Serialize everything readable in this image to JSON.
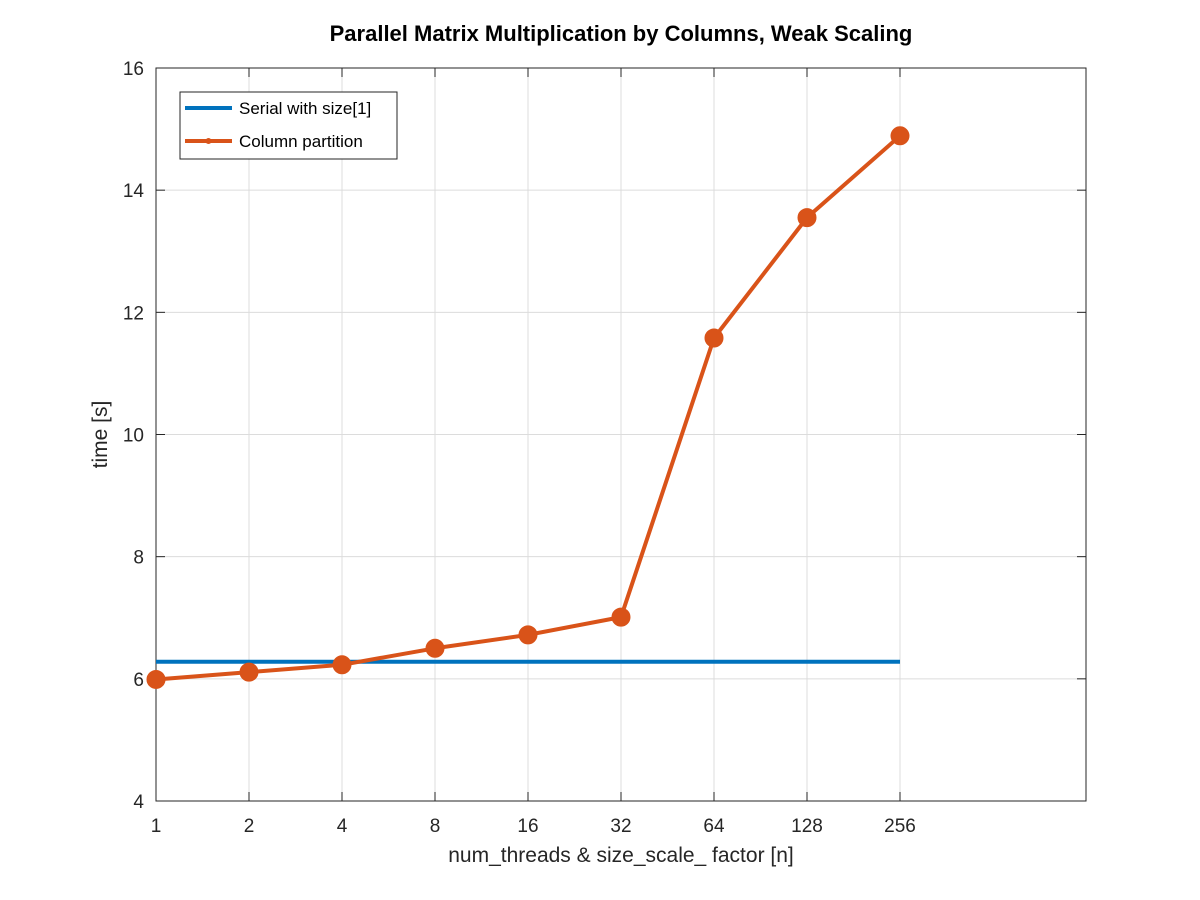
{
  "chart_data": {
    "type": "line",
    "title": "Parallel Matrix Multiplication by Columns, Weak Scaling",
    "xlabel": "num_threads & size_scale_ factor [n]",
    "ylabel": "time [s]",
    "x_scale": "log2",
    "x": [
      1,
      2,
      4,
      8,
      16,
      32,
      64,
      128,
      256
    ],
    "x_tick_labels": [
      "1",
      "2",
      "4",
      "8",
      "16",
      "32",
      "64",
      "128",
      "256"
    ],
    "xlim": [
      1,
      1024
    ],
    "ylim": [
      4,
      16
    ],
    "y_ticks": [
      4,
      6,
      8,
      10,
      12,
      14,
      16
    ],
    "grid": true,
    "legend_position": "top-left",
    "series": [
      {
        "name": "Serial with size[1]",
        "color": "#0072BD",
        "marker": "none",
        "values": [
          6.28,
          6.28,
          6.28,
          6.28,
          6.28,
          6.28,
          6.28,
          6.28,
          6.28
        ]
      },
      {
        "name": "Column partition",
        "color": "#D95319",
        "marker": "circle",
        "values": [
          5.99,
          6.11,
          6.23,
          6.5,
          6.72,
          7.01,
          11.58,
          13.55,
          14.89
        ]
      }
    ]
  }
}
